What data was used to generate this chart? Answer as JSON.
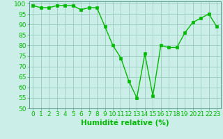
{
  "x": [
    0,
    1,
    2,
    3,
    4,
    5,
    6,
    7,
    8,
    9,
    10,
    11,
    12,
    13,
    14,
    15,
    16,
    17,
    18,
    19,
    20,
    21,
    22,
    23
  ],
  "y": [
    99,
    98,
    98,
    99,
    99,
    99,
    97,
    98,
    98,
    89,
    80,
    74,
    63,
    55,
    76,
    56,
    80,
    79,
    79,
    86,
    91,
    93,
    95,
    89
  ],
  "line_color": "#00bb00",
  "marker": "s",
  "marker_size": 2.2,
  "bg_color": "#cceee8",
  "grid_color": "#99ccbb",
  "xlabel": "Humidité relative (%)",
  "xlim": [
    -0.5,
    23.5
  ],
  "ylim": [
    50,
    101
  ],
  "yticks": [
    50,
    55,
    60,
    65,
    70,
    75,
    80,
    85,
    90,
    95,
    100
  ],
  "xticks": [
    0,
    1,
    2,
    3,
    4,
    5,
    6,
    7,
    8,
    9,
    10,
    11,
    12,
    13,
    14,
    15,
    16,
    17,
    18,
    19,
    20,
    21,
    22,
    23
  ],
  "xlabel_fontsize": 7.5,
  "tick_fontsize": 6.5
}
